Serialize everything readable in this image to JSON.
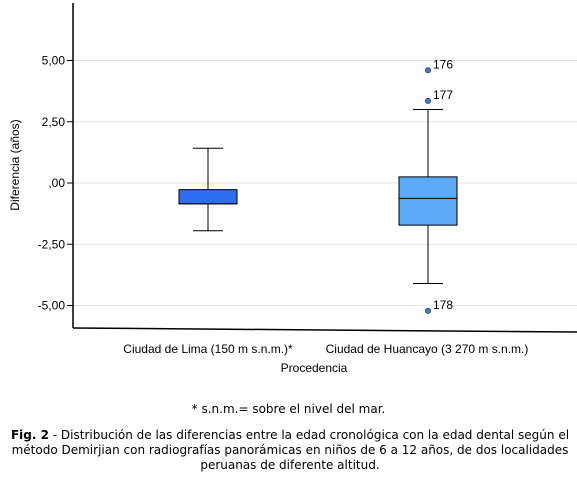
{
  "chart_data": {
    "type": "boxplot",
    "xlabel": "Procedencia",
    "ylabel": "Diferencia (años)",
    "ylim": [
      -5.9,
      7.2
    ],
    "yticks": [
      5.0,
      2.5,
      0.0,
      -2.5,
      -5.0
    ],
    "ytick_labels": [
      "5,00",
      "2,50",
      ",00",
      "-2,50",
      "-5,00"
    ],
    "grid": true,
    "categories": [
      "Ciudad de Lima (150 m s.n.m.)*",
      "Ciudad de Huancayo (3 270 m s.n.m.)"
    ],
    "boxes": [
      {
        "category": "Ciudad de Lima (150 m s.n.m.)*",
        "whisker_low": -1.95,
        "q1": -0.85,
        "median": -0.85,
        "q3": -0.27,
        "whisker_high": 1.42,
        "color": "#2f6df0",
        "outliers": []
      },
      {
        "category": "Ciudad de Huancayo (3 270 m s.n.m.)",
        "whisker_low": -4.1,
        "q1": -1.72,
        "median": -0.63,
        "q3": 0.25,
        "whisker_high": 3.0,
        "color": "#5aaaf5",
        "outliers": [
          {
            "value": 4.6,
            "label": "176"
          },
          {
            "value": 3.35,
            "label": "177"
          },
          {
            "value": -5.22,
            "label": "178"
          }
        ]
      }
    ]
  },
  "footnote": "* s.n.m.= sobre el nivel del mar.",
  "caption": {
    "label": "Fig. 2",
    "text": " - Distribución de las diferencias entre la edad cronológica con la edad dental según el método Demirjian con radiografías panorámicas en niños de 6 a 12 años, de dos localidades peruanas de diferente altitud."
  }
}
